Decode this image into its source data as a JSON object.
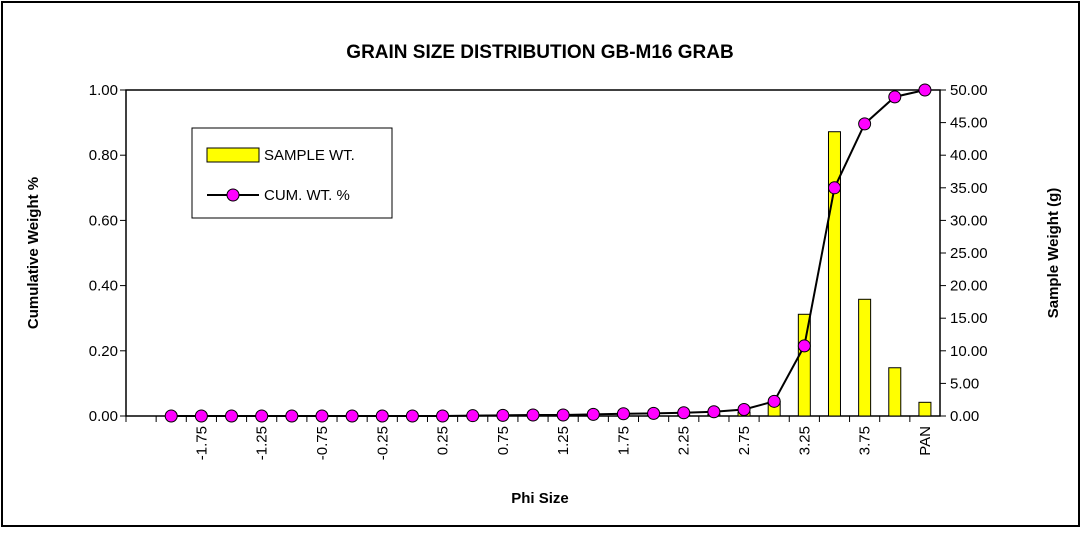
{
  "chart_data": {
    "type": "bar-line",
    "title": "GRAIN SIZE DISTRIBUTION GB-M16 GRAB",
    "xlabel": "Phi Size",
    "ylabel": "Cumulative Weight %",
    "y2label": "Sample Weight (g)",
    "categories": [
      null,
      null,
      "-1.75",
      null,
      "-1.25",
      null,
      "-0.75",
      null,
      "-0.25",
      null,
      "0.25",
      null,
      "0.75",
      null,
      "1.25",
      null,
      "1.75",
      null,
      "2.25",
      null,
      "2.75",
      null,
      "3.25",
      null,
      "3.75",
      null,
      "PAN"
    ],
    "series": [
      {
        "name": "SAMPLE WT.",
        "type": "bar",
        "axis": "y2",
        "color": "#ffff00",
        "values": [
          null,
          0,
          0,
          0,
          0,
          0,
          0,
          0,
          0,
          0,
          0,
          0.1,
          0.1,
          0.1,
          0.05,
          0.15,
          0.15,
          0.1,
          0.15,
          0.3,
          0.6,
          2.2,
          15.6,
          43.6,
          17.9,
          7.4,
          2.1
        ]
      },
      {
        "name": "CUM. WT. %",
        "type": "line",
        "axis": "y",
        "color": "#000000",
        "marker_color": "#ff00ff",
        "values": [
          null,
          0,
          0,
          0,
          0,
          0,
          0,
          0,
          0,
          0,
          0,
          0.001,
          0.002,
          0.003,
          0.003,
          0.005,
          0.007,
          0.008,
          0.01,
          0.013,
          0.02,
          0.045,
          0.215,
          0.7,
          0.896,
          0.979,
          1.0
        ]
      }
    ],
    "ylim": [
      0,
      1
    ],
    "yticks": [
      {
        "value": 0,
        "label": "0.00"
      },
      {
        "value": 0.2,
        "label": "0.20"
      },
      {
        "value": 0.4,
        "label": "0.40"
      },
      {
        "value": 0.6,
        "label": "0.60"
      },
      {
        "value": 0.8,
        "label": "0.80"
      },
      {
        "value": 1,
        "label": "1.00"
      }
    ],
    "y2lim": [
      0,
      50
    ],
    "y2ticks": [
      {
        "value": 0,
        "label": "0.00"
      },
      {
        "value": 5,
        "label": "5.00"
      },
      {
        "value": 10,
        "label": "10.00"
      },
      {
        "value": 15,
        "label": "15.00"
      },
      {
        "value": 20,
        "label": "20.00"
      },
      {
        "value": 25,
        "label": "25.00"
      },
      {
        "value": 30,
        "label": "30.00"
      },
      {
        "value": 35,
        "label": "35.00"
      },
      {
        "value": 40,
        "label": "40.00"
      },
      {
        "value": 45,
        "label": "45.00"
      },
      {
        "value": 50,
        "label": "50.00"
      }
    ],
    "grid": false,
    "legend": "upper left"
  }
}
